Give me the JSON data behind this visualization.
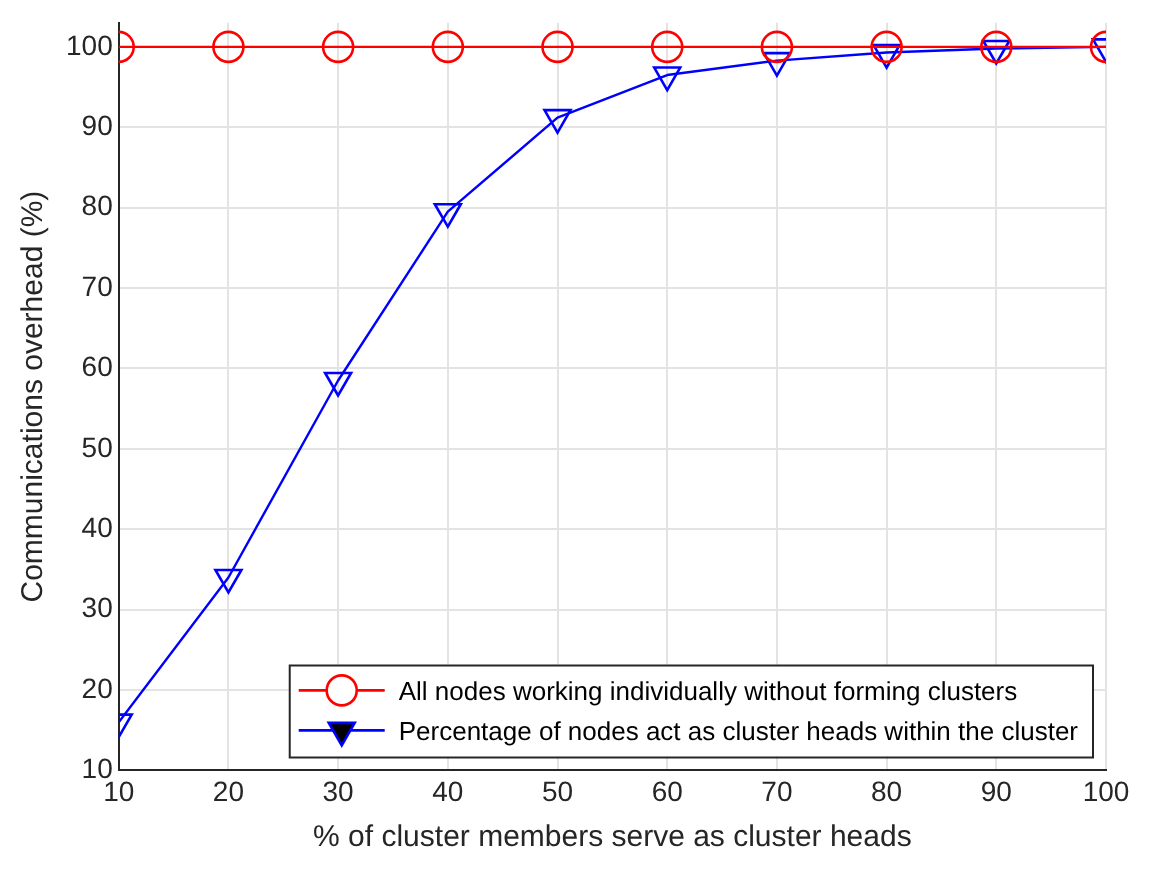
{
  "chart_data": {
    "type": "line",
    "xlabel": "% of cluster members serve as cluster heads",
    "ylabel": "Communications overhead (%)",
    "x": [
      10,
      20,
      30,
      40,
      50,
      60,
      70,
      80,
      90,
      100
    ],
    "series": [
      {
        "name": "All nodes working individually without forming clusters",
        "color": "#ff0000",
        "marker": "circle",
        "values": [
          100,
          100,
          100,
          100,
          100,
          100,
          100,
          100,
          100,
          100
        ]
      },
      {
        "name": "Percentage of nodes act as cluster heads within the cluster",
        "color": "#0000ff",
        "marker": "triangle",
        "values": [
          16,
          34,
          58.5,
          79.5,
          91.2,
          96.5,
          98.3,
          99.3,
          99.8,
          100
        ]
      }
    ],
    "xlim": [
      10,
      100
    ],
    "xticks": [
      10,
      20,
      30,
      40,
      50,
      60,
      70,
      80,
      90,
      100
    ],
    "ylim": [
      10,
      103
    ],
    "yticks": [
      10,
      20,
      30,
      40,
      50,
      60,
      70,
      80,
      90,
      100
    ],
    "grid": true,
    "legend": "bottom right",
    "line_style": "solid"
  }
}
